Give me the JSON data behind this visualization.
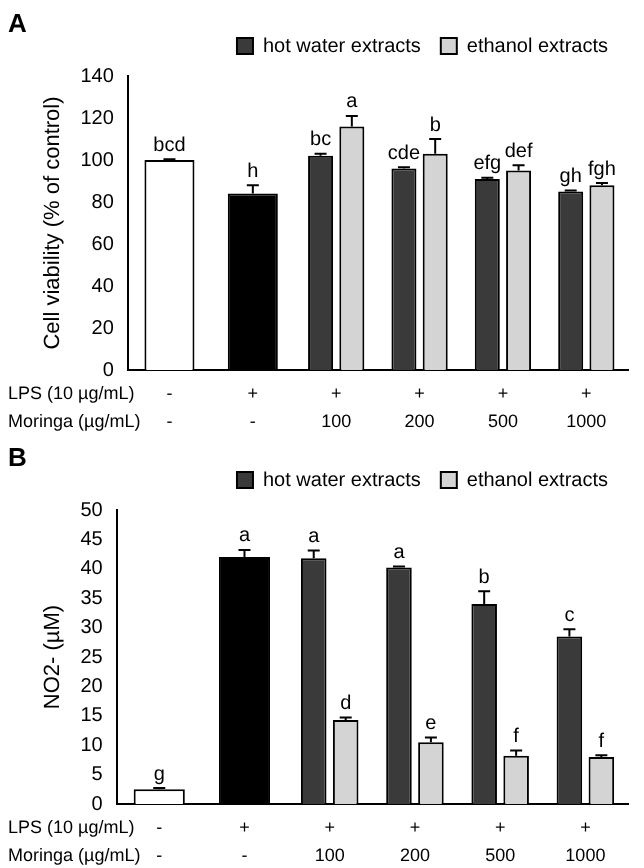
{
  "chart_data": [
    {
      "type": "bar",
      "title": "A",
      "ylabel": "Cell viability (% of control)",
      "categories": [
        "-\n-",
        "+\n-",
        "+\n100",
        "+\n200",
        "+\n500",
        "+\n1000"
      ],
      "annotations": [
        "LPS (10 µg/mL)",
        "Moringa (µg/mL)"
      ],
      "ylim": [
        0,
        140
      ],
      "yticks": [
        0,
        20,
        40,
        60,
        80,
        100,
        120,
        140
      ],
      "grid": false,
      "legend": "top right",
      "series": [
        {
          "colors": [
            "#ffffff",
            "#000000",
            null,
            null,
            null,
            null
          ],
          "values": [
            100,
            84,
            null,
            null,
            null,
            null
          ],
          "errors": [
            [
              100,
              100.3
            ],
            [
              84,
              88
            ],
            null,
            null,
            null,
            null
          ],
          "value_labels": [
            "bcd",
            "h",
            null,
            null,
            null,
            null
          ]
        },
        {
          "name": "hot water extracts",
          "color": "#3a3a3a",
          "values": [
            null,
            null,
            102,
            96,
            91,
            85
          ],
          "errors": [
            null,
            null,
            [
              102,
              103
            ],
            [
              96,
              96.5
            ],
            [
              91,
              91.5
            ],
            [
              85,
              85.5
            ]
          ],
          "value_labels": [
            null,
            null,
            "bc",
            "cde",
            "efg",
            "gh"
          ]
        },
        {
          "name": "ethanol extracts",
          "color": "#d4d4d4",
          "values": [
            null,
            null,
            116,
            103,
            95,
            88
          ],
          "errors": [
            null,
            null,
            [
              116,
              121
            ],
            [
              103,
              110
            ],
            [
              95,
              97.5
            ],
            [
              88,
              89
            ]
          ],
          "value_labels": [
            null,
            null,
            "a",
            "b",
            "def",
            "fgh"
          ]
        }
      ]
    },
    {
      "type": "bar",
      "title": "B",
      "ylabel": "NO2- (µM)",
      "categories": [
        "-\n-",
        "+\n-",
        "+\n100",
        "+\n200",
        "+\n500",
        "+\n1000"
      ],
      "annotations": [
        "LPS (10 µg/mL)",
        "Moringa (µg/mL)"
      ],
      "ylim": [
        0,
        50
      ],
      "yticks": [
        0,
        5,
        10,
        15,
        20,
        25,
        30,
        35,
        40,
        45,
        50
      ],
      "grid": false,
      "legend": "top right",
      "series": [
        {
          "colors": [
            "#ffffff",
            "#000000",
            null,
            null,
            null,
            null
          ],
          "values": [
            2.5,
            42,
            null,
            null,
            null,
            null
          ],
          "errors": [
            [
              2.5,
              2.7
            ],
            [
              42,
              43.2
            ],
            null,
            null,
            null,
            null
          ],
          "value_labels": [
            "g",
            "a",
            null,
            null,
            null,
            null
          ]
        },
        {
          "name": "hot water extracts",
          "color": "#3a3a3a",
          "values": [
            null,
            null,
            41.8,
            40.2,
            34,
            28.5
          ],
          "errors": [
            null,
            null,
            [
              41.8,
              43.1
            ],
            [
              40.2,
              40.4
            ],
            [
              34,
              36.2
            ],
            [
              28.5,
              29.7
            ]
          ],
          "value_labels": [
            null,
            null,
            "a",
            "a",
            "b",
            "c"
          ]
        },
        {
          "name": "ethanol extracts",
          "color": "#d4d4d4",
          "values": [
            null,
            null,
            14.3,
            10.5,
            8.2,
            8.0
          ],
          "errors": [
            null,
            null,
            [
              14.3,
              14.7
            ],
            [
              10.5,
              11.3
            ],
            [
              8.2,
              9.1
            ],
            [
              8.0,
              8.3
            ]
          ],
          "value_labels": [
            null,
            null,
            "d",
            "e",
            "f",
            "f"
          ]
        }
      ]
    }
  ]
}
